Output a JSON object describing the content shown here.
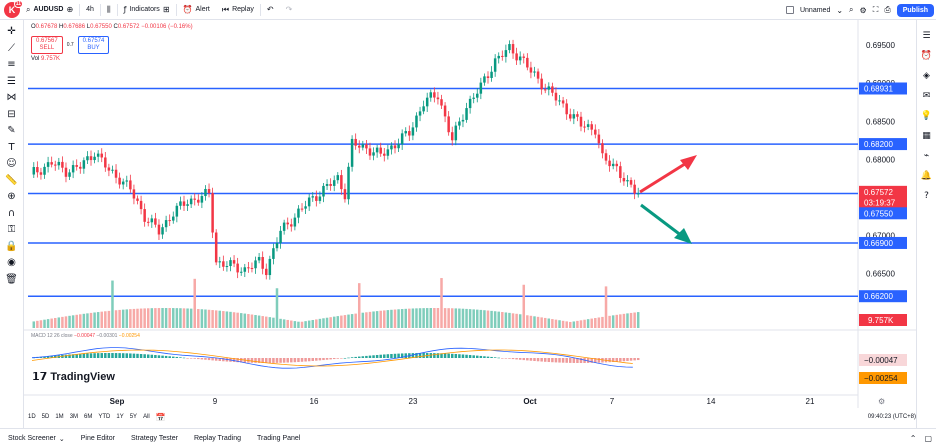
{
  "toolbar": {
    "logo_letter": "K",
    "logo_badge": "11",
    "symbol": "AUDUSD",
    "interval": "4h",
    "indicators": "Indicators",
    "alert": "Alert",
    "replay": "Replay",
    "layout_name": "Unnamed",
    "publish": "Publish"
  },
  "legend": {
    "open_label": "O",
    "o": "0.67678",
    "high_label": "H",
    "h": "0.67686",
    "low_label": "L",
    "l": "0.67550",
    "close_label": "C",
    "c": "0.67572",
    "change": "−0.00106 (−0.16%)",
    "sell_price": "0.67567",
    "sell_label": "SELL",
    "spread": "0.7",
    "buy_price": "0.67574",
    "buy_label": "BUY",
    "vol_label": "Vol",
    "vol_value": "9.757K"
  },
  "macd_legend": {
    "label": "MACD 12 26 close",
    "v1": "−0.00047",
    "v2": "−0.00301",
    "v3": "−0.00254"
  },
  "brand": "TradingView",
  "price_axis": {
    "ticks": [
      "0.69500",
      "0.69000",
      "0.68500",
      "0.68000",
      "0.67000",
      "0.66500"
    ],
    "tags": [
      {
        "label": "0.68931",
        "price": 0.68931,
        "color": "#2962ff"
      },
      {
        "label": "0.68200",
        "price": 0.682,
        "color": "#2962ff"
      },
      {
        "label": "0.67572",
        "price": 0.67572,
        "color": "#f23645"
      },
      {
        "label": "03:19:37",
        "price": 0.6743,
        "color": "#f23645"
      },
      {
        "label": "0.67550",
        "price": 0.6729,
        "color": "#2962ff"
      },
      {
        "label": "0.66900",
        "price": 0.669,
        "color": "#2962ff"
      },
      {
        "label": "0.66200",
        "price": 0.662,
        "color": "#2962ff"
      }
    ],
    "vol_tag": "9.757K",
    "macd_tags": [
      "−0.00047",
      "−0.00254"
    ]
  },
  "horizontal_lines": [
    0.68931,
    0.682,
    0.6755,
    0.669,
    0.662
  ],
  "time_axis": [
    "Sep",
    "9",
    "16",
    "23",
    "Oct",
    "7",
    "14",
    "21"
  ],
  "ranges": [
    "1D",
    "5D",
    "1M",
    "3M",
    "6M",
    "YTD",
    "1Y",
    "5Y",
    "All"
  ],
  "clock": "09:40:23 (UTC+8)",
  "bottom_tabs": [
    "Stock Screener",
    "Pine Editor",
    "Strategy Tester",
    "Replay Trading",
    "Trading Panel"
  ],
  "colors": {
    "up": "#089981",
    "down": "#f23645",
    "line": "#2962ff",
    "arrow_up": "#f23645",
    "arrow_down": "#089981"
  },
  "chart_data": {
    "type": "candlestick",
    "symbol": "AUDUSD",
    "interval": "4h",
    "x": [
      "Sep",
      "9",
      "16",
      "23",
      "Oct",
      "7",
      "14",
      "21"
    ],
    "ylim": [
      0.6615,
      0.697
    ],
    "close_path": [
      [
        0,
        0.678
      ],
      [
        6,
        0.6795
      ],
      [
        10,
        0.6785
      ],
      [
        14,
        0.679
      ],
      [
        18,
        0.681
      ],
      [
        22,
        0.6785
      ],
      [
        25,
        0.6775
      ],
      [
        28,
        0.676
      ],
      [
        32,
        0.6725
      ],
      [
        36,
        0.6705
      ],
      [
        40,
        0.673
      ],
      [
        44,
        0.6745
      ],
      [
        48,
        0.675
      ],
      [
        50,
        0.6755
      ],
      [
        52,
        0.6665
      ],
      [
        56,
        0.666
      ],
      [
        60,
        0.6655
      ],
      [
        64,
        0.6665
      ],
      [
        66,
        0.6655
      ],
      [
        70,
        0.6705
      ],
      [
        74,
        0.6725
      ],
      [
        78,
        0.6745
      ],
      [
        82,
        0.676
      ],
      [
        86,
        0.6775
      ],
      [
        88,
        0.6755
      ],
      [
        90,
        0.682
      ],
      [
        94,
        0.6815
      ],
      [
        98,
        0.6805
      ],
      [
        102,
        0.682
      ],
      [
        106,
        0.6835
      ],
      [
        110,
        0.6875
      ],
      [
        114,
        0.6885
      ],
      [
        118,
        0.6825
      ],
      [
        122,
        0.687
      ],
      [
        126,
        0.6895
      ],
      [
        130,
        0.693
      ],
      [
        134,
        0.6945
      ],
      [
        137,
        0.6935
      ],
      [
        140,
        0.6915
      ],
      [
        144,
        0.6895
      ],
      [
        148,
        0.6875
      ],
      [
        150,
        0.6865
      ],
      [
        154,
        0.6845
      ],
      [
        158,
        0.684
      ],
      [
        160,
        0.68
      ],
      [
        164,
        0.679
      ],
      [
        167,
        0.6765
      ],
      [
        170,
        0.6757
      ]
    ],
    "annotations": [
      "up-arrow",
      "down-arrow"
    ]
  }
}
